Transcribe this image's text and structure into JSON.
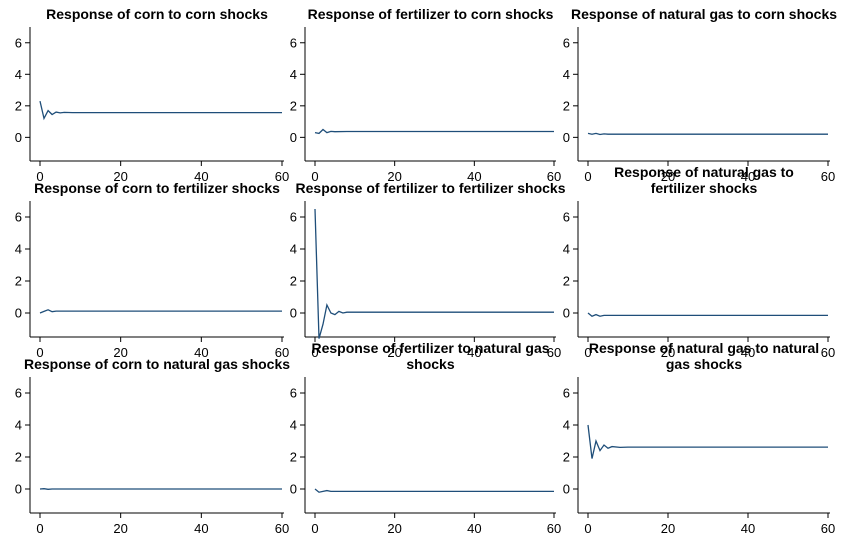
{
  "chart_data": [
    {
      "type": "line",
      "title": [
        "Response of corn to corn shocks"
      ],
      "xlim": [
        0,
        60
      ],
      "ylim": [
        -1.5,
        7
      ],
      "xticks": [
        0,
        20,
        40,
        60
      ],
      "yticks": [
        0,
        2,
        4,
        6
      ],
      "series": [
        {
          "color": "#1f4e79",
          "x": [
            0,
            1,
            2,
            3,
            4,
            5,
            6,
            8,
            10,
            60
          ],
          "y": [
            2.3,
            1.2,
            1.7,
            1.45,
            1.6,
            1.55,
            1.58,
            1.57,
            1.57,
            1.57
          ]
        }
      ]
    },
    {
      "type": "line",
      "title": [
        "Response of fertilizer to corn shocks"
      ],
      "xlim": [
        0,
        60
      ],
      "ylim": [
        -1.5,
        7
      ],
      "xticks": [
        0,
        20,
        40,
        60
      ],
      "yticks": [
        0,
        2,
        4,
        6
      ],
      "series": [
        {
          "color": "#1f4e79",
          "x": [
            0,
            1,
            2,
            3,
            4,
            5,
            8,
            60
          ],
          "y": [
            0.3,
            0.25,
            0.5,
            0.3,
            0.38,
            0.36,
            0.37,
            0.37
          ]
        }
      ]
    },
    {
      "type": "line",
      "title": [
        "Response of natural gas to corn shocks"
      ],
      "xlim": [
        0,
        60
      ],
      "ylim": [
        -1.5,
        7
      ],
      "xticks": [
        0,
        20,
        40,
        60
      ],
      "yticks": [
        0,
        2,
        4,
        6
      ],
      "series": [
        {
          "color": "#1f4e79",
          "x": [
            0,
            1,
            2,
            3,
            4,
            5,
            60
          ],
          "y": [
            0.25,
            0.2,
            0.25,
            0.18,
            0.22,
            0.2,
            0.2
          ]
        }
      ]
    },
    {
      "type": "line",
      "title": [
        "Response of corn to fertilizer shocks"
      ],
      "xlim": [
        0,
        60
      ],
      "ylim": [
        -1.5,
        7
      ],
      "xticks": [
        0,
        20,
        40,
        60
      ],
      "yticks": [
        0,
        2,
        4,
        6
      ],
      "series": [
        {
          "color": "#1f4e79",
          "x": [
            0,
            1,
            2,
            3,
            4,
            60
          ],
          "y": [
            0.0,
            0.1,
            0.2,
            0.08,
            0.12,
            0.12
          ]
        }
      ]
    },
    {
      "type": "line",
      "title": [
        "Response of fertilizer to fertilizer shocks"
      ],
      "xlim": [
        0,
        60
      ],
      "ylim": [
        -1.5,
        7
      ],
      "xticks": [
        0,
        20,
        40,
        60
      ],
      "yticks": [
        0,
        2,
        4,
        6
      ],
      "series": [
        {
          "color": "#1f4e79",
          "x": [
            0,
            1,
            2,
            3,
            4,
            5,
            6,
            7,
            8,
            10,
            60
          ],
          "y": [
            6.5,
            -1.6,
            -0.7,
            0.5,
            0.0,
            -0.1,
            0.1,
            0.0,
            0.05,
            0.05,
            0.05
          ]
        }
      ]
    },
    {
      "type": "line",
      "title": [
        "Response of natural gas to",
        "fertilizer shocks"
      ],
      "xlim": [
        0,
        60
      ],
      "ylim": [
        -1.5,
        7
      ],
      "xticks": [
        0,
        20,
        40,
        60
      ],
      "yticks": [
        0,
        2,
        4,
        6
      ],
      "series": [
        {
          "color": "#1f4e79",
          "x": [
            0,
            1,
            2,
            3,
            4,
            5,
            60
          ],
          "y": [
            0.0,
            -0.2,
            -0.1,
            -0.2,
            -0.15,
            -0.15,
            -0.15
          ]
        }
      ]
    },
    {
      "type": "line",
      "title": [
        "Response of corn to natural gas shocks"
      ],
      "xlim": [
        0,
        60
      ],
      "ylim": [
        -1.5,
        7
      ],
      "xticks": [
        0,
        20,
        40,
        60
      ],
      "yticks": [
        0,
        2,
        4,
        6
      ],
      "series": [
        {
          "color": "#1f4e79",
          "x": [
            0,
            1,
            2,
            3,
            60
          ],
          "y": [
            0.0,
            0.02,
            -0.02,
            0.0,
            0.0
          ]
        }
      ]
    },
    {
      "type": "line",
      "title": [
        "Response of fertilizer to natural gas",
        "shocks"
      ],
      "xlim": [
        0,
        60
      ],
      "ylim": [
        -1.5,
        7
      ],
      "xticks": [
        0,
        20,
        40,
        60
      ],
      "yticks": [
        0,
        2,
        4,
        6
      ],
      "series": [
        {
          "color": "#1f4e79",
          "x": [
            0,
            1,
            2,
            3,
            4,
            60
          ],
          "y": [
            0.0,
            -0.2,
            -0.15,
            -0.1,
            -0.15,
            -0.15
          ]
        }
      ]
    },
    {
      "type": "line",
      "title": [
        "Response of natural gas to natural",
        "gas shocks"
      ],
      "xlim": [
        0,
        60
      ],
      "ylim": [
        -1.5,
        7
      ],
      "xticks": [
        0,
        20,
        40,
        60
      ],
      "yticks": [
        0,
        2,
        4,
        6
      ],
      "series": [
        {
          "color": "#1f4e79",
          "x": [
            0,
            1,
            2,
            3,
            4,
            5,
            6,
            8,
            10,
            60
          ],
          "y": [
            4.0,
            1.9,
            3.0,
            2.4,
            2.75,
            2.55,
            2.65,
            2.6,
            2.62,
            2.62
          ]
        }
      ]
    }
  ]
}
